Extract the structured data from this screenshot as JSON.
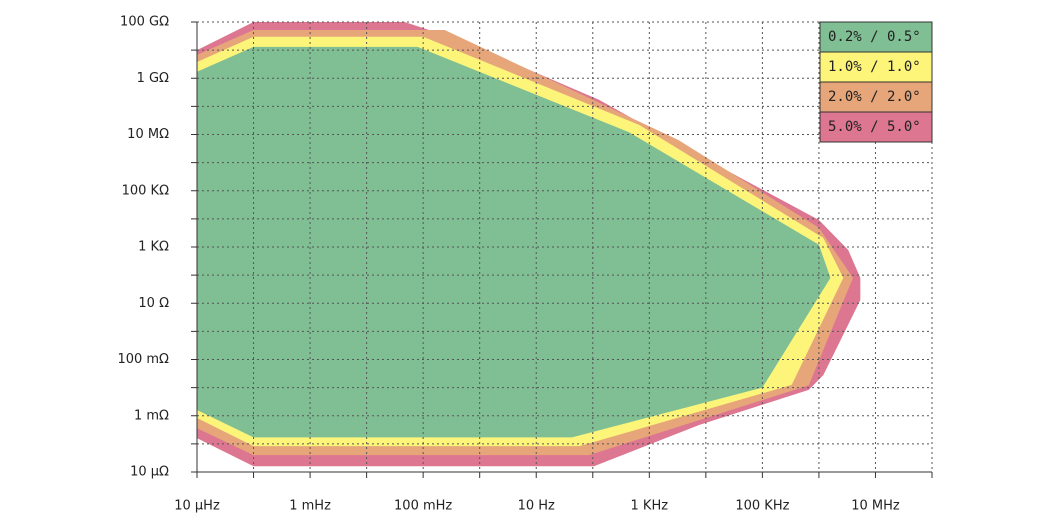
{
  "chart_data": {
    "type": "area",
    "xscale": "log",
    "yscale": "log",
    "grid": true,
    "legend": "upper right",
    "xlim": [
      1e-05,
      100000000
    ],
    "ylim": [
      1e-05,
      100000000000
    ],
    "xticks": [
      {
        "value": 1e-05,
        "label": "10 µHz"
      },
      {
        "value": 0.001,
        "label": "1 mHz"
      },
      {
        "value": 0.1,
        "label": "100 mHz"
      },
      {
        "value": 10,
        "label": "10 Hz"
      },
      {
        "value": 1000,
        "label": "1 KHz"
      },
      {
        "value": 100000,
        "label": "100 KHz"
      },
      {
        "value": 10000000,
        "label": "10 MHz"
      }
    ],
    "x_minor_ticks": [
      0.0001,
      0.01,
      1,
      100,
      10000,
      1000000,
      100000000
    ],
    "yticks": [
      {
        "value": 1e-05,
        "label": "10 µΩ"
      },
      {
        "value": 0.001,
        "label": "1 mΩ"
      },
      {
        "value": 0.1,
        "label": "100 mΩ"
      },
      {
        "value": 10,
        "label": "10 Ω"
      },
      {
        "value": 1000,
        "label": "1 KΩ"
      },
      {
        "value": 100000,
        "label": "100 KΩ"
      },
      {
        "value": 10000000,
        "label": "10 MΩ"
      },
      {
        "value": 1000000000,
        "label": "1 GΩ"
      },
      {
        "value": 100000000000,
        "label": "100 GΩ"
      }
    ],
    "y_minor_ticks": [
      0.0001,
      0.01,
      1,
      100,
      10000,
      1000000,
      100000000,
      10000000000
    ],
    "series": [
      {
        "name": "0.2% / 0.5°",
        "color": "#80bf94",
        "x": [
          1e-05,
          0.0001,
          0.08,
          440,
          1000000,
          1600000,
          100000,
          43,
          0.0001,
          1e-05
        ],
        "values": [
          1700000000,
          13000000000,
          13000000000,
          12000000,
          1200,
          80,
          0.01,
          0.00017,
          0.00017,
          0.0016
        ]
      },
      {
        "name": "1.0% / 1.0°",
        "color": "#fcf57a",
        "x": [
          1e-05,
          0.0001,
          0.1,
          660,
          1200000,
          2700000,
          330000,
          58,
          0.0001,
          1e-05
        ],
        "values": [
          3800000000,
          30000000000,
          30000000000,
          22000000,
          2100,
          80,
          0.0125,
          8.3e-05,
          8.3e-05,
          0.00083
        ]
      },
      {
        "name": "2.0% / 2.0°",
        "color": "#e7a57a",
        "x": [
          1e-05,
          0.0001,
          0.24,
          3300,
          1000000,
          4000000,
          660000,
          86,
          0.0001,
          1e-05
        ],
        "values": [
          6800000000,
          52000000000,
          52000000000,
          6300000,
          4800,
          80,
          0.012,
          4e-05,
          4e-05,
          0.00036
        ]
      },
      {
        "name": "5.0% / 5.0°",
        "color": "#dd7690",
        "x": [
          1e-05,
          0.0001,
          0.047,
          0.44,
          130,
          5000,
          1000000,
          3300000,
          5400000,
          5400000,
          1200000,
          660000,
          7600,
          105,
          0.0001,
          1e-05
        ],
        "values": [
          10000000000,
          100000000000,
          100000000000,
          23000000000,
          170000000,
          2800000,
          9100,
          780,
          80,
          13,
          0.028,
          0.0083,
          0.00047,
          1.6e-05,
          1.6e-05,
          0.00016
        ]
      }
    ]
  }
}
